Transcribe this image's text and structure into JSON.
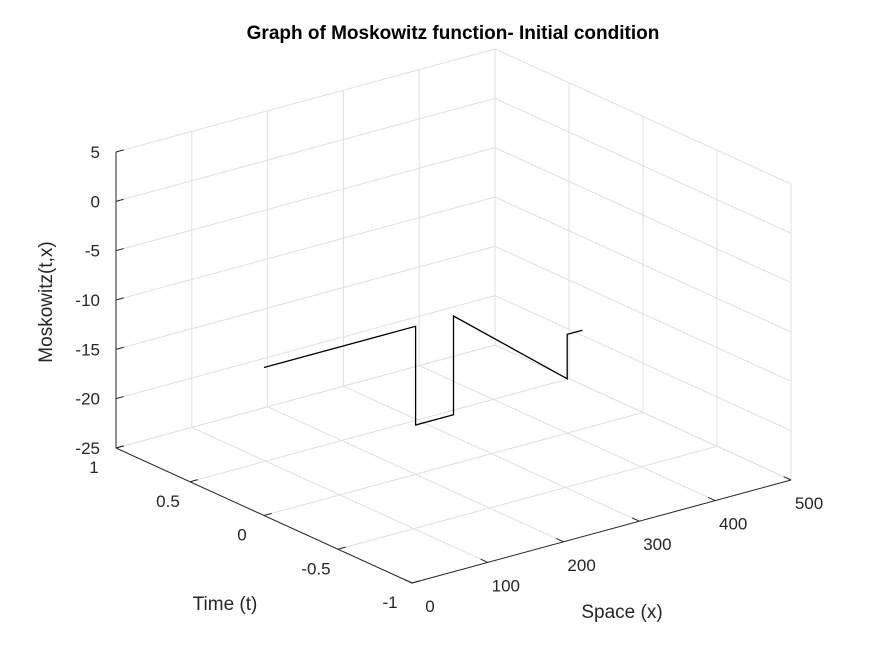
{
  "chart_data": {
    "type": "line",
    "view": "3d",
    "title": "Graph of Moskowitz function- Initial condition",
    "xlabel": "Space (x)",
    "ylabel": "Time (t)",
    "zlabel": "Moskowitz(t,x)",
    "xlim": [
      0,
      500
    ],
    "ylim": [
      -1,
      1
    ],
    "zlim": [
      -25,
      5
    ],
    "x_ticks": [
      "0",
      "100",
      "200",
      "300",
      "400",
      "500"
    ],
    "y_ticks": [
      "-1",
      "-0.5",
      "0",
      "0.5",
      "1"
    ],
    "z_ticks": [
      "-25",
      "-20",
      "-15",
      "-10",
      "-5",
      "0",
      "5"
    ],
    "grid": true,
    "series": [
      {
        "color": "#000000",
        "t": 0,
        "x": [
          0,
          200,
          200,
          250,
          250,
          400,
          400,
          420
        ],
        "z": [
          -10,
          -10,
          -20,
          -20,
          -10,
          -19.5,
          -15,
          -15
        ]
      }
    ]
  }
}
